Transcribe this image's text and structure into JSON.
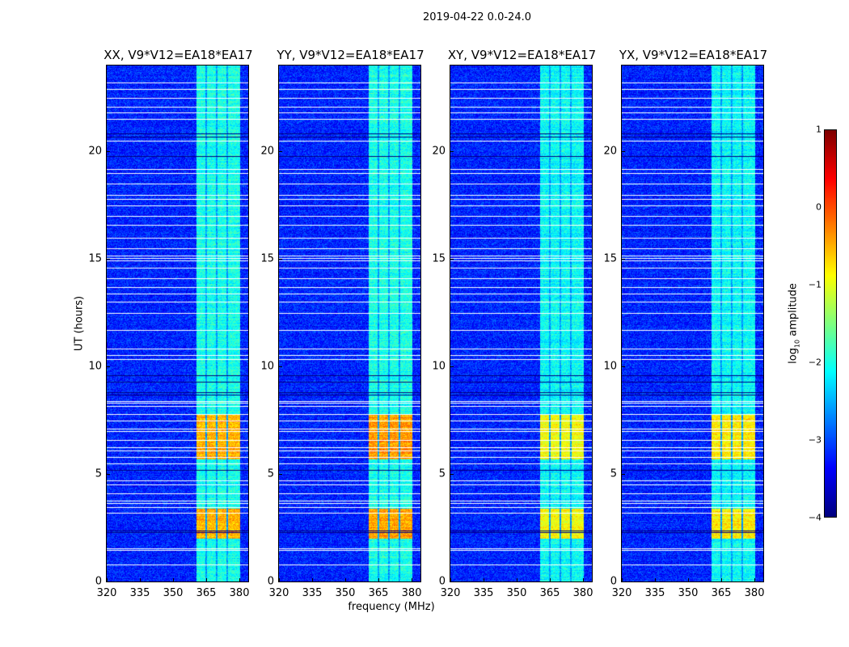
{
  "chart_data": {
    "type": "heatmap",
    "title": "2019-04-22 0.0-24.0",
    "xlabel": "frequency (MHz)",
    "ylabel": "UT (hours)",
    "xlim": [
      320,
      384
    ],
    "ylim": [
      0,
      24
    ],
    "xticks": [
      "320",
      "335",
      "350",
      "365",
      "380"
    ],
    "xtick_values": [
      320,
      335,
      350,
      365,
      380
    ],
    "yticks": [
      "0",
      "5",
      "10",
      "15",
      "20"
    ],
    "ytick_values": [
      0,
      5,
      10,
      15,
      20
    ],
    "panels": [
      {
        "title": "XX, V9*V12=EA18*EA17",
        "rfi_level": -0.5,
        "band_level": -2.0
      },
      {
        "title": "YY, V9*V12=EA18*EA17",
        "rfi_level": -0.4,
        "band_level": -2.0
      },
      {
        "title": "XY, V9*V12=EA18*EA17",
        "rfi_level": -0.9,
        "band_level": -2.1
      },
      {
        "title": "YX, V9*V12=EA18*EA17",
        "rfi_level": -0.8,
        "band_level": -2.1
      }
    ],
    "background_level": -3.2,
    "bright_band_mhz": [
      [
        360.5,
        364.3
      ],
      [
        365.2,
        369.2
      ],
      [
        370.0,
        373.8
      ],
      [
        374.6,
        380.0
      ]
    ],
    "rfi_hours": [
      [
        2.0,
        3.4
      ],
      [
        5.7,
        7.8
      ]
    ],
    "flagged_white_hours": [
      0.8,
      1.45,
      1.55,
      3.2,
      3.45,
      3.65,
      3.75,
      4.1,
      4.5,
      4.7,
      5.5,
      5.8,
      6.1,
      6.25,
      6.6,
      7.0,
      7.12,
      7.5,
      7.8,
      8.15,
      8.3,
      8.4,
      10.35,
      10.55,
      10.85,
      11.7,
      12.5,
      13.0,
      13.4,
      13.7,
      14.1,
      14.6,
      14.95,
      15.05,
      15.15,
      15.5,
      16.0,
      16.6,
      17.0,
      17.5,
      17.8,
      18.0,
      18.5,
      19.0,
      19.2,
      20.5,
      21.5,
      21.8,
      22.1,
      22.5,
      22.9,
      23.2
    ],
    "flagged_black_hours": [
      2.3,
      2.36,
      5.2,
      8.7,
      8.8,
      9.3,
      9.6,
      19.8,
      20.7,
      20.85
    ],
    "colorbar": {
      "label": "log10 amplitude",
      "label_main": "log",
      "label_sub": "10",
      "label_rest": " amplitude",
      "range": [
        -4,
        1
      ],
      "ticks": [
        "1",
        "0",
        "−1",
        "−2",
        "−3",
        "−4"
      ],
      "tick_values": [
        1,
        0,
        -1,
        -2,
        -3,
        -4
      ],
      "colormap": "jet"
    }
  }
}
